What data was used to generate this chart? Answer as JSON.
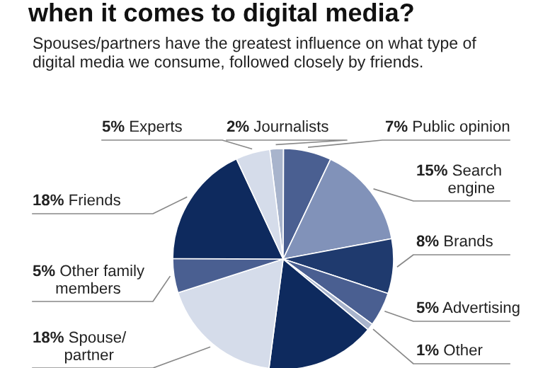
{
  "chart_data": {
    "type": "pie",
    "title": "when it comes to digital media?",
    "subtitle": "Spouses/partners have the greatest influence on what type of\ndigital media we consume, followed closely by friends.",
    "categories": [
      "Journalists",
      "Public opinion",
      "Search\nengine",
      "Brands",
      "Advertising",
      "Other",
      null,
      "Spouse/\npartner",
      "Other family\nmembers",
      "Friends",
      "Experts"
    ],
    "values": [
      2,
      7,
      15,
      8,
      5,
      1,
      16,
      18,
      5,
      18,
      5
    ],
    "colors": [
      "#a8b4cc",
      "#4a5f91",
      "#8192b9",
      "#1f3a6e",
      "#4a5f91",
      "#a8b4cc",
      "#0e2a5e",
      "#d5dcea",
      "#4a5f91",
      "#0e2a5e",
      "#d5dcea"
    ],
    "value_labels": [
      "2%",
      "7%",
      "15%",
      "8%",
      "5%",
      "1%",
      null,
      "18%",
      "5%",
      "18%",
      "5%"
    ],
    "legend": false
  }
}
